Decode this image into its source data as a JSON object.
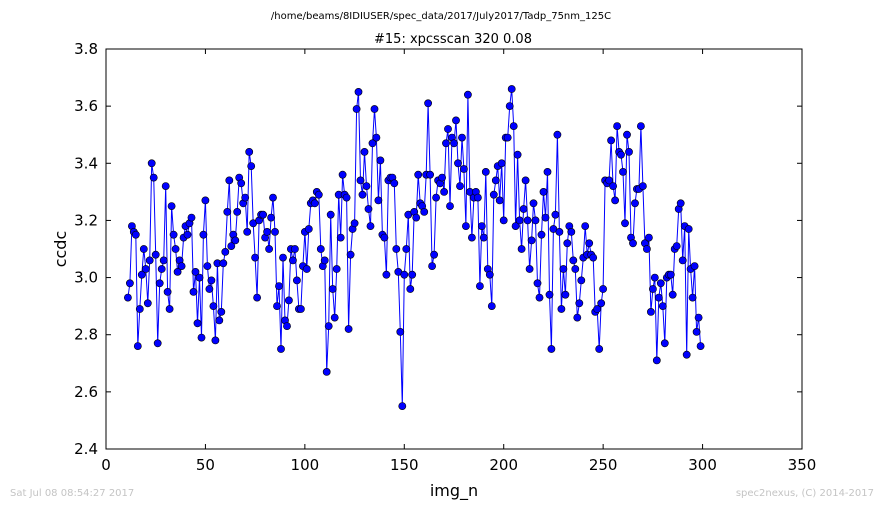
{
  "figure": {
    "suptitle": "/home/beams/8IDIUSER/spec_data/2017/July2017/Tadp_75nm_125C",
    "timestamp": "Sat Jul 08 08:54:27 2017",
    "credit": "spec2nexus, (C) 2014-2017"
  },
  "chart_data": {
    "type": "line",
    "title": "#15: xpcsscan 320 0.08",
    "xlabel": "img_n",
    "ylabel": "ccdc",
    "xlim": [
      0,
      350
    ],
    "ylim": [
      2.4,
      3.8
    ],
    "xticks": [
      0,
      50,
      100,
      150,
      200,
      250,
      300,
      350
    ],
    "yticks": [
      2.4,
      2.6,
      2.8,
      3.0,
      3.2,
      3.4,
      3.6,
      3.8
    ],
    "grid": false,
    "colors": {
      "series": "#0000ff"
    },
    "series": [
      {
        "x_start": 11,
        "x_step": 1,
        "marker": "circle",
        "values": [
          2.93,
          2.98,
          3.18,
          3.16,
          3.15,
          2.76,
          2.89,
          3.01,
          3.1,
          3.03,
          2.91,
          3.06,
          3.4,
          3.35,
          3.08,
          2.77,
          2.98,
          3.03,
          3.06,
          3.32,
          2.95,
          2.89,
          3.25,
          3.15,
          3.1,
          3.02,
          3.06,
          3.04,
          3.14,
          3.18,
          3.15,
          3.19,
          3.21,
          2.95,
          3.02,
          2.84,
          3.0,
          2.79,
          3.15,
          3.27,
          3.04,
          2.96,
          2.99,
          2.9,
          2.78,
          3.05,
          2.85,
          2.88,
          3.05,
          3.09,
          3.23,
          3.34,
          3.11,
          3.15,
          3.13,
          3.23,
          3.35,
          3.33,
          3.26,
          3.28,
          3.16,
          3.44,
          3.39,
          3.19,
          3.07,
          2.93,
          3.2,
          3.22,
          3.22,
          3.14,
          3.16,
          3.1,
          3.21,
          3.28,
          3.16,
          2.9,
          2.97,
          2.75,
          3.07,
          2.85,
          2.83,
          2.92,
          3.1,
          3.06,
          3.1,
          2.99,
          2.89,
          2.89,
          3.04,
          3.16,
          3.03,
          3.17,
          3.26,
          3.27,
          3.26,
          3.3,
          3.29,
          3.1,
          3.04,
          3.06,
          2.67,
          2.83,
          3.22,
          2.96,
          2.86,
          3.03,
          3.29,
          3.14,
          3.36,
          3.29,
          3.28,
          2.82,
          3.08,
          3.17,
          3.19,
          3.59,
          3.65,
          3.34,
          3.29,
          3.44,
          3.32,
          3.24,
          3.18,
          3.47,
          3.59,
          3.49,
          3.27,
          3.41,
          3.15,
          3.14,
          3.01,
          3.34,
          3.35,
          3.35,
          3.33,
          3.1,
          3.02,
          2.81,
          2.55,
          3.01,
          3.1,
          3.22,
          2.96,
          3.01,
          3.23,
          3.21,
          3.36,
          3.26,
          3.25,
          3.23,
          3.36,
          3.61,
          3.36,
          3.04,
          3.08,
          3.28,
          3.34,
          3.33,
          3.35,
          3.3,
          3.47,
          3.52,
          3.25,
          3.49,
          3.47,
          3.55,
          3.4,
          3.32,
          3.49,
          3.38,
          3.18,
          3.64,
          3.3,
          3.14,
          3.28,
          3.3,
          3.28,
          2.97,
          3.18,
          3.14,
          3.37,
          3.03,
          3.01,
          2.9,
          3.29,
          3.34,
          3.39,
          3.27,
          3.4,
          3.2,
          3.49,
          3.49,
          3.6,
          3.66,
          3.53,
          3.18,
          3.43,
          3.2,
          3.1,
          3.24,
          3.34,
          3.2,
          3.03,
          3.13,
          3.26,
          3.2,
          2.98,
          2.93,
          3.15,
          3.3,
          3.21,
          3.37,
          2.94,
          2.75,
          3.17,
          3.22,
          3.5,
          3.16,
          2.89,
          3.03,
          2.94,
          3.12,
          3.18,
          3.16,
          3.06,
          3.03,
          2.86,
          2.91,
          2.99,
          3.07,
          3.18,
          3.08,
          3.12,
          3.08,
          3.07,
          2.88,
          2.89,
          2.75,
          2.91,
          2.96,
          3.34,
          3.33,
          3.34,
          3.48,
          3.32,
          3.27,
          3.53,
          3.44,
          3.43,
          3.37,
          3.19,
          3.5,
          3.44,
          3.14,
          3.12,
          3.26,
          3.31,
          3.31,
          3.53,
          3.32,
          3.12,
          3.1,
          3.14,
          2.88,
          2.96,
          3.0,
          2.71,
          2.93,
          2.98,
          2.9,
          2.77,
          3.0,
          3.01,
          3.01,
          2.94,
          3.1,
          3.11,
          3.24,
          3.26,
          3.06,
          3.18,
          2.73,
          3.17,
          3.03,
          2.93,
          3.04,
          2.81,
          2.86,
          2.76
        ]
      }
    ]
  }
}
